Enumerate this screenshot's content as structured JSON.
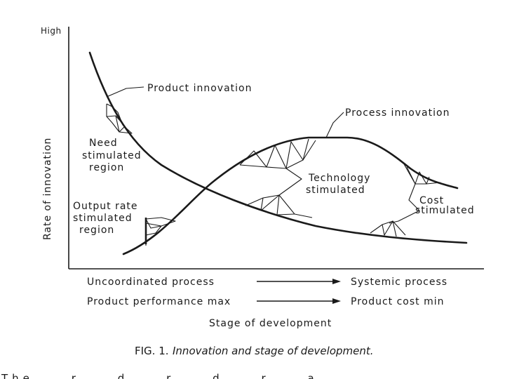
{
  "axes": {
    "y_top_label": "High",
    "y_label": "Rate of innovation",
    "x_label": "Stage of development"
  },
  "curves": {
    "product_innovation": "Product innovation",
    "process_innovation": "Process innovation"
  },
  "regions": {
    "need_line1": "Need",
    "need_line2": "stimulated",
    "need_line3": "region",
    "output_line1": "Output rate",
    "output_line2": "stimulated",
    "output_line3": "region",
    "tech_line1": "Technology",
    "tech_line2": "stimulated",
    "cost_line1": "Cost",
    "cost_line2": "stimulated"
  },
  "progressions": [
    {
      "from": "Uncoordinated process",
      "to": "Systemic process"
    },
    {
      "from": "Product performance max",
      "to": "Product cost min"
    }
  ],
  "caption": {
    "fig_number": "FIG. 1.",
    "title": "Innovation and stage of development."
  },
  "cut_off_text": "The ... r ... d ... r ... d ... r ... a"
}
